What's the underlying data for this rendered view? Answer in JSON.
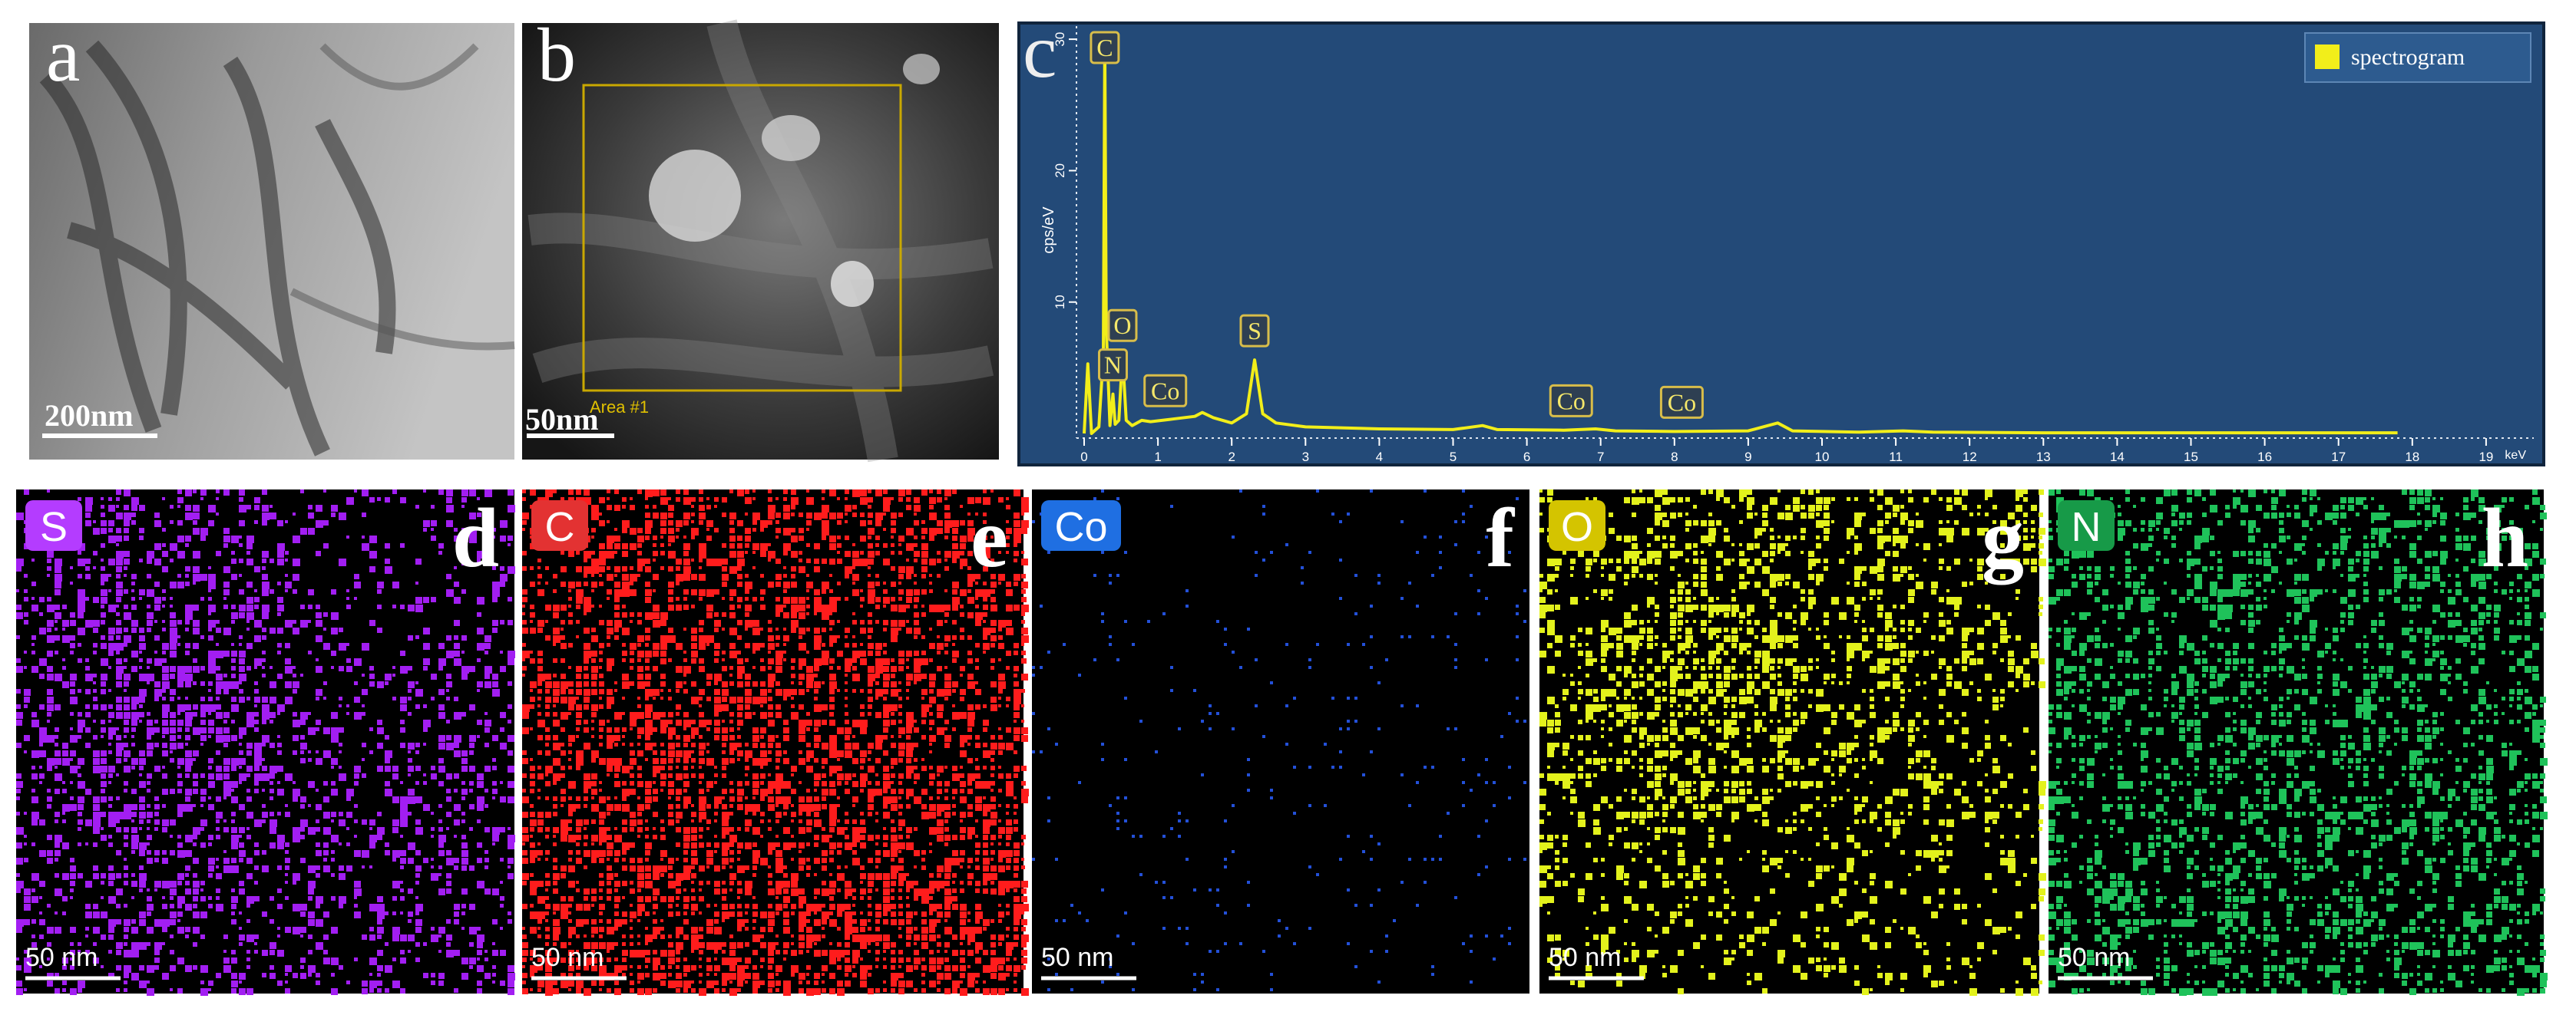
{
  "panels": [
    {
      "letter": "a",
      "scale_bar": "200nm"
    },
    {
      "letter": "b",
      "scale_bar": "50nm",
      "roi_label": "Area #1"
    },
    {
      "letter": "c"
    },
    {
      "letter": "d",
      "element": "S",
      "scale_bar": "50 nm"
    },
    {
      "letter": "e",
      "element": "C",
      "scale_bar": "50 nm"
    },
    {
      "letter": "f",
      "element": "Co",
      "scale_bar": "50 nm"
    },
    {
      "letter": "g",
      "element": "O",
      "scale_bar": "50 nm"
    },
    {
      "letter": "h",
      "element": "N",
      "scale_bar": "50 nm"
    }
  ],
  "spectrum": {
    "type": "line",
    "y_label": "cps/eV",
    "x_unit": "keV",
    "legend": "spectrogram",
    "color": "#f2ee1a",
    "x": [
      0,
      0.05,
      0.1,
      0.2,
      0.26,
      0.28,
      0.3,
      0.35,
      0.39,
      0.42,
      0.47,
      0.52,
      0.57,
      0.65,
      0.78,
      0.9,
      1.2,
      1.5,
      1.6,
      1.75,
      2.0,
      2.2,
      2.31,
      2.42,
      2.6,
      3.0,
      4.0,
      5.0,
      5.4,
      5.6,
      6.5,
      6.93,
      7.2,
      8.0,
      9.0,
      9.4,
      9.6,
      10.5,
      11.1,
      11.5,
      13,
      15,
      17.8
    ],
    "values": [
      0,
      5.3,
      0,
      0.5,
      6,
      30,
      8,
      0.6,
      3,
      0.7,
      1,
      6,
      1,
      0.6,
      1,
      0.9,
      1.1,
      1.3,
      1.6,
      1.2,
      0.8,
      1.5,
      5.6,
      1.5,
      0.8,
      0.5,
      0.35,
      0.3,
      0.6,
      0.3,
      0.25,
      0.35,
      0.2,
      0.15,
      0.2,
      0.8,
      0.2,
      0.1,
      0.2,
      0.1,
      0.05,
      0.05,
      0.05
    ],
    "xlim": [
      0,
      20
    ],
    "ylim": [
      0,
      31
    ],
    "xticks": [
      0,
      1,
      2,
      3,
      4,
      5,
      6,
      7,
      8,
      9,
      10,
      11,
      12,
      13,
      14,
      15,
      16,
      17,
      18,
      19
    ],
    "yticks": [
      10,
      20,
      30
    ],
    "peak_labels": [
      {
        "label": "C",
        "x": 0.28
      },
      {
        "label": "N",
        "x": 0.39
      },
      {
        "label": "O",
        "x": 0.52
      },
      {
        "label": "Co",
        "x": 1.1
      },
      {
        "label": "S",
        "x": 2.31
      },
      {
        "label": "Co",
        "x": 6.6
      },
      {
        "label": "Co",
        "x": 8.1
      }
    ]
  }
}
